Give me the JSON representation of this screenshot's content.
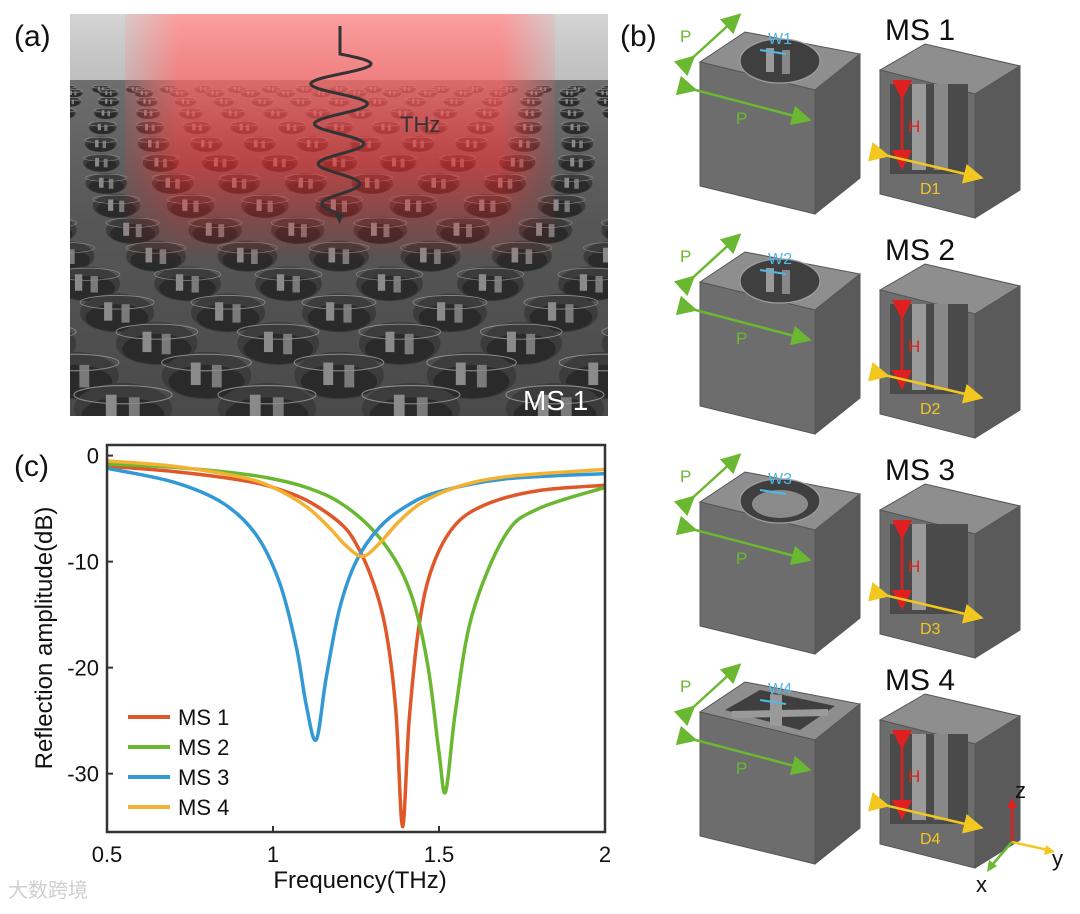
{
  "figure": {
    "panel_labels": {
      "a": "(a)",
      "b": "(b)",
      "c": "(c)"
    },
    "panel_a": {
      "wave_label": "THz",
      "structure_label": "MS 1"
    },
    "panel_b": {
      "cells": [
        {
          "name": "MS 1",
          "period": "P",
          "width": "W1",
          "height": "H",
          "diameter": "D1"
        },
        {
          "name": "MS 2",
          "period": "P",
          "width": "W2",
          "height": "H",
          "diameter": "D2"
        },
        {
          "name": "MS 3",
          "period": "P",
          "width": "W3",
          "height": "H",
          "diameter": "D3"
        },
        {
          "name": "MS 4",
          "period": "P",
          "width": "W4",
          "height": "H",
          "diameter": "D4"
        }
      ],
      "axes": {
        "z": "z",
        "y": "y",
        "x": "x"
      }
    },
    "watermark": "大数跨境"
  },
  "chart_data": {
    "type": "line",
    "xlabel": "Frequency(THz)",
    "ylabel": "Reflection amplitude(dB)",
    "xlim": [
      0.5,
      2.0
    ],
    "ylim": [
      -35.5,
      1.0
    ],
    "xticks": [
      "0.5",
      "1",
      "1.5",
      "2"
    ],
    "yticks": [
      "0",
      "-10",
      "-20",
      "-30"
    ],
    "grid": false,
    "legend_position": "bottom-left",
    "series": [
      {
        "name": "MS 1",
        "color": "#e0582a",
        "x": [
          0.5,
          0.7,
          0.9,
          1.0,
          1.1,
          1.2,
          1.25,
          1.3,
          1.34,
          1.37,
          1.39,
          1.41,
          1.44,
          1.48,
          1.55,
          1.65,
          1.8,
          2.0
        ],
        "y": [
          -1.0,
          -1.5,
          -2.3,
          -3.0,
          -4.2,
          -6.3,
          -8.3,
          -11.8,
          -16.5,
          -24.0,
          -35.0,
          -25.0,
          -16.0,
          -10.5,
          -6.5,
          -4.5,
          -3.3,
          -2.8
        ]
      },
      {
        "name": "MS 2",
        "color": "#6ab832",
        "x": [
          0.5,
          0.7,
          0.9,
          1.0,
          1.1,
          1.2,
          1.3,
          1.38,
          1.43,
          1.47,
          1.5,
          1.52,
          1.55,
          1.6,
          1.7,
          1.8,
          2.0
        ],
        "y": [
          -0.8,
          -1.1,
          -1.7,
          -2.2,
          -3.0,
          -4.4,
          -7.0,
          -10.5,
          -14.5,
          -20.5,
          -28.0,
          -31.7,
          -24.0,
          -15.0,
          -7.5,
          -5.0,
          -3.0
        ]
      },
      {
        "name": "MS 3",
        "color": "#3399d4",
        "x": [
          0.5,
          0.7,
          0.85,
          0.95,
          1.02,
          1.07,
          1.1,
          1.13,
          1.16,
          1.2,
          1.25,
          1.32,
          1.4,
          1.5,
          1.7,
          2.0
        ],
        "y": [
          -1.2,
          -2.5,
          -4.5,
          -7.5,
          -12.0,
          -18.0,
          -23.5,
          -26.8,
          -21.0,
          -14.5,
          -10.0,
          -6.8,
          -4.8,
          -3.4,
          -2.2,
          -1.7
        ]
      },
      {
        "name": "MS 4",
        "color": "#f2b233",
        "x": [
          0.5,
          0.7,
          0.9,
          1.0,
          1.1,
          1.17,
          1.22,
          1.27,
          1.32,
          1.38,
          1.45,
          1.55,
          1.7,
          2.0
        ],
        "y": [
          -0.5,
          -1.0,
          -2.0,
          -3.0,
          -4.8,
          -6.8,
          -8.5,
          -9.5,
          -8.3,
          -6.2,
          -4.4,
          -3.0,
          -2.0,
          -1.3
        ]
      }
    ]
  }
}
